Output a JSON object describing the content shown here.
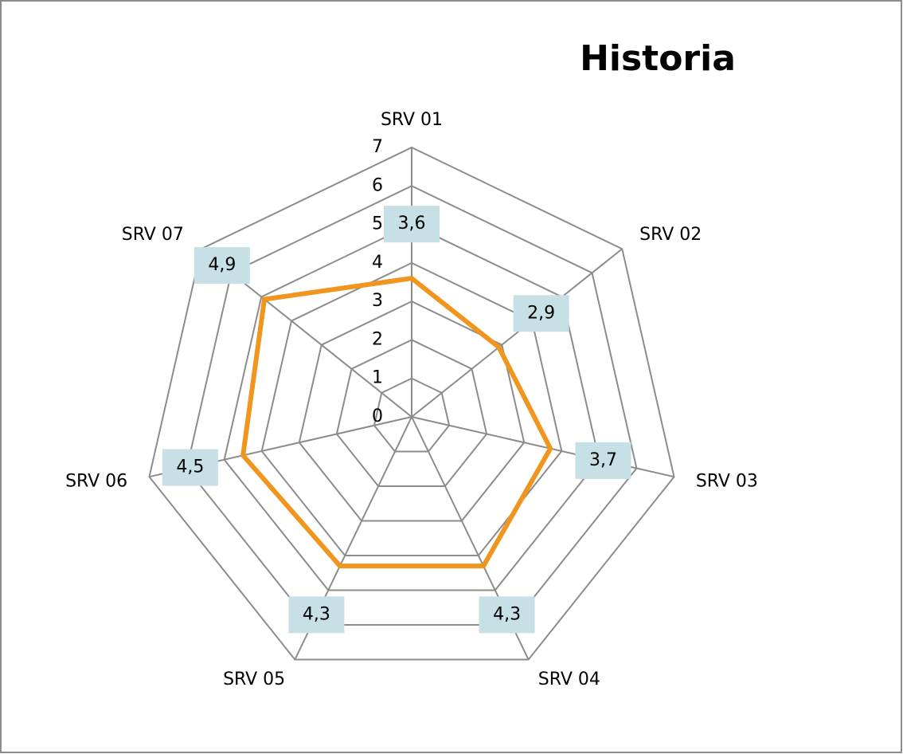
{
  "chart_data": {
    "type": "radar",
    "title": "Historia",
    "categories": [
      "SRV 01",
      "SRV 02",
      "SRV 03",
      "SRV 04",
      "SRV 05",
      "SRV 06",
      "SRV 07"
    ],
    "series": [
      {
        "name": "Historia",
        "color": "#f0951e",
        "values": [
          3.6,
          2.9,
          3.7,
          4.3,
          4.3,
          4.5,
          4.9
        ],
        "value_labels": [
          "3,6",
          "2,9",
          "3,7",
          "4,3",
          "4,3",
          "4,5",
          "4,9"
        ]
      }
    ],
    "ylim": [
      0,
      7
    ],
    "yticks": [
      0,
      1,
      2,
      3,
      4,
      5,
      6,
      7
    ],
    "grid": true
  }
}
